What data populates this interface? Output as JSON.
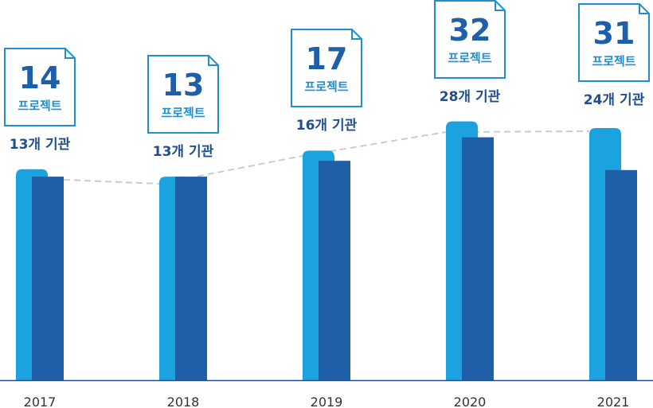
{
  "chart_data": {
    "type": "bar",
    "categories": [
      "2017",
      "2018",
      "2019",
      "2020",
      "2021"
    ],
    "series": [
      {
        "values": [
          14,
          13,
          17,
          32,
          31
        ],
        "color": "#1aa3df"
      },
      {
        "values": [
          13,
          13,
          16,
          28,
          24
        ],
        "color": "#1f5fa8"
      }
    ],
    "project_unit": "프로젝트",
    "institution_labels": [
      "13개 기관",
      "13개 기관",
      "16개 기관",
      "28개 기관",
      "24개 기관"
    ],
    "trend_line": {
      "style": "dashed",
      "color": "#cccccc"
    }
  }
}
